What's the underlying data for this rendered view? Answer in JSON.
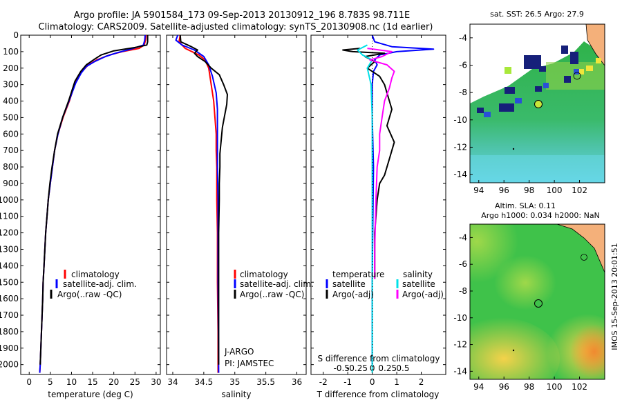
{
  "header": {
    "line1": "Argo profile: JA 5901584_173 09-Sep-2013 20130912_196 8.783S 98.711E",
    "line2": "Climatology: CARS2009. Satellite-adjusted climatology: synTS_20130908.nc (1d earlier)"
  },
  "side_stamp": "IMOS 15-Sep-2013 20:01:51",
  "depth_axis": {
    "ticks": [
      0,
      100,
      200,
      300,
      400,
      500,
      600,
      700,
      800,
      900,
      1000,
      1100,
      1200,
      1300,
      1400,
      1500,
      1600,
      1700,
      1800,
      1900,
      2000
    ],
    "range": [
      0,
      2060
    ]
  },
  "colors": {
    "climatology": "#ff0000",
    "satellite_adj": "#0000ff",
    "argo": "#000000",
    "sal_satellite": "#00e0e8",
    "sal_argo": "#ff00ff",
    "ocean_green": "#3fc24a",
    "land": "#f4b07a"
  },
  "chart_data": [
    {
      "type": "line",
      "panel": "temperature",
      "xlabel": "temperature (deg C)",
      "xlim": [
        -2,
        31
      ],
      "xticks": [
        0,
        5,
        10,
        15,
        20,
        25,
        30
      ],
      "xtick_labels": [
        "0",
        "5",
        "10",
        "15",
        "20",
        "25",
        "30"
      ],
      "ylim": [
        0,
        2060
      ],
      "legend": [
        "climatology",
        "satellite-adj. clim.",
        "Argo(..raw -QC)"
      ],
      "series": [
        {
          "name": "climatology",
          "color": "#ff0000",
          "points": [
            [
              27.6,
              0
            ],
            [
              27.5,
              30
            ],
            [
              27.2,
              60
            ],
            [
              26.0,
              80
            ],
            [
              22.0,
              100
            ],
            [
              19.0,
              120
            ],
            [
              16.0,
              150
            ],
            [
              14.0,
              180
            ],
            [
              12.5,
              220
            ],
            [
              11.0,
              280
            ],
            [
              9.5,
              400
            ],
            [
              8.0,
              500
            ],
            [
              6.8,
              600
            ],
            [
              6.0,
              700
            ],
            [
              5.5,
              800
            ],
            [
              5.0,
              900
            ],
            [
              4.5,
              1000
            ],
            [
              4.2,
              1100
            ],
            [
              3.9,
              1200
            ],
            [
              3.7,
              1300
            ],
            [
              3.5,
              1400
            ],
            [
              3.3,
              1500
            ],
            [
              3.2,
              1600
            ],
            [
              3.05,
              1700
            ],
            [
              2.9,
              1800
            ],
            [
              2.75,
              1900
            ],
            [
              2.6,
              2000
            ],
            [
              2.5,
              2050
            ]
          ]
        },
        {
          "name": "satellite-adj. clim.",
          "color": "#0000ff",
          "points": [
            [
              27.4,
              0
            ],
            [
              27.3,
              30
            ],
            [
              27.0,
              60
            ],
            [
              24.0,
              85
            ],
            [
              21.0,
              105
            ],
            [
              18.0,
              130
            ],
            [
              15.5,
              160
            ],
            [
              13.5,
              190
            ],
            [
              12.3,
              230
            ],
            [
              11.0,
              290
            ],
            [
              9.4,
              400
            ],
            [
              7.9,
              500
            ],
            [
              6.8,
              600
            ],
            [
              6.0,
              700
            ],
            [
              5.5,
              800
            ],
            [
              5.0,
              900
            ],
            [
              4.5,
              1000
            ],
            [
              4.2,
              1100
            ],
            [
              3.9,
              1200
            ],
            [
              3.7,
              1300
            ],
            [
              3.5,
              1400
            ],
            [
              3.3,
              1500
            ],
            [
              3.2,
              1600
            ],
            [
              3.05,
              1700
            ],
            [
              2.9,
              1800
            ],
            [
              2.75,
              1900
            ],
            [
              2.6,
              2000
            ],
            [
              2.5,
              2050
            ]
          ]
        },
        {
          "name": "Argo(..raw -QC)",
          "color": "#000000",
          "points": [
            [
              28.0,
              0
            ],
            [
              28.0,
              40
            ],
            [
              27.8,
              60
            ],
            [
              25.0,
              75
            ],
            [
              20.0,
              95
            ],
            [
              17.0,
              120
            ],
            [
              15.5,
              145
            ],
            [
              13.5,
              180
            ],
            [
              12.2,
              220
            ],
            [
              10.8,
              280
            ],
            [
              9.3,
              400
            ],
            [
              7.9,
              500
            ],
            [
              6.7,
              600
            ],
            [
              6.0,
              700
            ],
            [
              5.4,
              800
            ],
            [
              4.9,
              900
            ],
            [
              4.5,
              1000
            ],
            [
              4.2,
              1100
            ],
            [
              3.9,
              1200
            ],
            [
              3.7,
              1300
            ],
            [
              3.5,
              1400
            ],
            [
              3.3,
              1500
            ],
            [
              3.2,
              1600
            ],
            [
              3.05,
              1700
            ],
            [
              2.9,
              1800
            ],
            [
              2.75,
              1900
            ],
            [
              2.6,
              2000
            ]
          ]
        }
      ]
    },
    {
      "type": "line",
      "panel": "salinity",
      "xlabel": "salinity",
      "xlim": [
        33.9,
        36.15
      ],
      "xticks": [
        34,
        34.5,
        35,
        35.5,
        36
      ],
      "xtick_labels": [
        "34",
        "34.5",
        "35",
        "35.5",
        "36"
      ],
      "ylim": [
        0,
        2060
      ],
      "legend": [
        "climatology",
        "satellite-adj. clim.",
        "Argo(..raw -QC)"
      ],
      "annotation": [
        "J-ARGO",
        "PI: JAMSTEC"
      ],
      "series": [
        {
          "name": "climatology",
          "color": "#ff0000",
          "points": [
            [
              34.12,
              0
            ],
            [
              34.1,
              40
            ],
            [
              34.2,
              80
            ],
            [
              34.42,
              120
            ],
            [
              34.52,
              150
            ],
            [
              34.58,
              200
            ],
            [
              34.62,
              300
            ],
            [
              34.66,
              400
            ],
            [
              34.68,
              500
            ],
            [
              34.7,
              600
            ],
            [
              34.7,
              700
            ],
            [
              34.71,
              800
            ],
            [
              34.71,
              1000
            ],
            [
              34.72,
              1200
            ],
            [
              34.72,
              1500
            ],
            [
              34.73,
              1800
            ],
            [
              34.73,
              2050
            ]
          ]
        },
        {
          "name": "satellite-adj. clim.",
          "color": "#0000ff",
          "points": [
            [
              34.08,
              0
            ],
            [
              34.05,
              30
            ],
            [
              34.15,
              60
            ],
            [
              34.35,
              90
            ],
            [
              34.5,
              130
            ],
            [
              34.58,
              180
            ],
            [
              34.64,
              250
            ],
            [
              34.7,
              350
            ],
            [
              34.72,
              450
            ],
            [
              34.72,
              600
            ],
            [
              34.72,
              800
            ],
            [
              34.73,
              1000
            ],
            [
              34.73,
              1500
            ],
            [
              34.74,
              2050
            ]
          ]
        },
        {
          "name": "Argo(..raw -QC)",
          "color": "#000000",
          "points": [
            [
              34.12,
              0
            ],
            [
              34.13,
              40
            ],
            [
              34.3,
              70
            ],
            [
              34.4,
              90
            ],
            [
              34.35,
              110
            ],
            [
              34.4,
              130
            ],
            [
              34.52,
              160
            ],
            [
              34.62,
              200
            ],
            [
              34.75,
              240
            ],
            [
              34.82,
              300
            ],
            [
              34.88,
              360
            ],
            [
              34.87,
              420
            ],
            [
              34.84,
              480
            ],
            [
              34.8,
              560
            ],
            [
              34.78,
              640
            ],
            [
              34.76,
              720
            ],
            [
              34.76,
              800
            ],
            [
              34.75,
              900
            ],
            [
              34.75,
              1000
            ],
            [
              34.74,
              1200
            ],
            [
              34.74,
              1500
            ],
            [
              34.74,
              1800
            ],
            [
              34.74,
              2000
            ]
          ]
        }
      ]
    },
    {
      "type": "line",
      "panel": "difference",
      "xlabel": "T difference from climatology",
      "xlabel2": "S difference from climatology",
      "xlim": [
        -2.5,
        3.0
      ],
      "xticks": [
        -2,
        -1,
        0,
        1,
        2
      ],
      "xtick_labels": [
        "-2",
        "-1",
        "0",
        "1",
        "2"
      ],
      "sticks": [
        -1.25,
        -0.625,
        0,
        0.625,
        1.25
      ],
      "stick_labels": [
        "-0.5",
        "-0.25",
        "0",
        "0.25",
        "0.5"
      ],
      "ylim": [
        0,
        2060
      ],
      "legend_titles": [
        "temperature",
        "salinity"
      ],
      "legend": [
        "satellite",
        "Argo(-adj)",
        "satellite",
        "Argo(-adj)"
      ],
      "series": [
        {
          "name": "temperature satellite",
          "color": "#0000ff",
          "points": [
            [
              0,
              0
            ],
            [
              0.1,
              40
            ],
            [
              0.8,
              70
            ],
            [
              2.5,
              85
            ],
            [
              1.0,
              100
            ],
            [
              0.3,
              120
            ],
            [
              0.1,
              150
            ],
            [
              0.2,
              180
            ],
            [
              0.05,
              220
            ],
            [
              0.0,
              300
            ],
            [
              0.0,
              500
            ],
            [
              0.05,
              800
            ],
            [
              0.02,
              1200
            ],
            [
              0.0,
              1500
            ],
            [
              0.0,
              2000
            ]
          ]
        },
        {
          "name": "temperature Argo(-adj)",
          "color": "#000000",
          "points": [
            [
              -0.5,
              80
            ],
            [
              -1.2,
              90
            ],
            [
              -0.8,
              100
            ],
            [
              0.5,
              110
            ],
            [
              -0.3,
              130
            ],
            [
              0.1,
              160
            ],
            [
              -0.2,
              200
            ],
            [
              0.3,
              250
            ],
            [
              0.5,
              300
            ],
            [
              0.6,
              350
            ],
            [
              0.8,
              450
            ],
            [
              0.6,
              550
            ],
            [
              0.9,
              650
            ],
            [
              0.7,
              750
            ],
            [
              0.5,
              850
            ],
            [
              0.3,
              900
            ],
            [
              0.2,
              1000
            ],
            [
              0.1,
              1200
            ],
            [
              0.1,
              1400
            ],
            [
              0.1,
              1480
            ]
          ]
        },
        {
          "name": "salinity satellite",
          "color": "#00e0e8",
          "points": [
            [
              -0.2,
              60
            ],
            [
              -0.6,
              90
            ],
            [
              -0.4,
              120
            ],
            [
              0.0,
              150
            ],
            [
              -0.2,
              200
            ],
            [
              -0.05,
              300
            ],
            [
              0.0,
              500
            ],
            [
              0.0,
              800
            ],
            [
              0.0,
              1200
            ],
            [
              0.0,
              1500
            ],
            [
              0.0,
              1900
            ],
            [
              0.0,
              2050
            ]
          ]
        },
        {
          "name": "salinity Argo(-adj)",
          "color": "#ff00ff",
          "points": [
            [
              -0.2,
              80
            ],
            [
              0.8,
              100
            ],
            [
              0.4,
              130
            ],
            [
              -0.1,
              150
            ],
            [
              0.6,
              180
            ],
            [
              0.9,
              220
            ],
            [
              0.8,
              260
            ],
            [
              0.7,
              320
            ],
            [
              0.5,
              400
            ],
            [
              0.4,
              500
            ],
            [
              0.3,
              600
            ],
            [
              0.3,
              700
            ],
            [
              0.2,
              800
            ],
            [
              0.15,
              1000
            ],
            [
              0.1,
              1300
            ],
            [
              0.1,
              1480
            ]
          ]
        }
      ]
    },
    {
      "type": "heatmap",
      "panel": "map_sst",
      "title": "sat. SST: 26.5 Argo: 27.9",
      "xlim": [
        93.3,
        104
      ],
      "ylim": [
        -14.6,
        -3
      ],
      "xticks": [
        94,
        96,
        98,
        100,
        102
      ],
      "yticks": [
        -4,
        -6,
        -8,
        -10,
        -12,
        -14
      ],
      "profile_point": [
        98.711,
        -8.783
      ]
    },
    {
      "type": "heatmap",
      "panel": "map_sla",
      "title_line1": "Altim. SLA: 0.11",
      "title_line2": "Argo h1000: 0.034 h2000: NaN",
      "xlim": [
        93.3,
        104
      ],
      "ylim": [
        -14.6,
        -3
      ],
      "xticks": [
        94,
        96,
        98,
        100,
        102
      ],
      "yticks": [
        -4,
        -6,
        -8,
        -10,
        -12,
        -14
      ],
      "profile_point": [
        98.711,
        -8.783
      ]
    }
  ]
}
